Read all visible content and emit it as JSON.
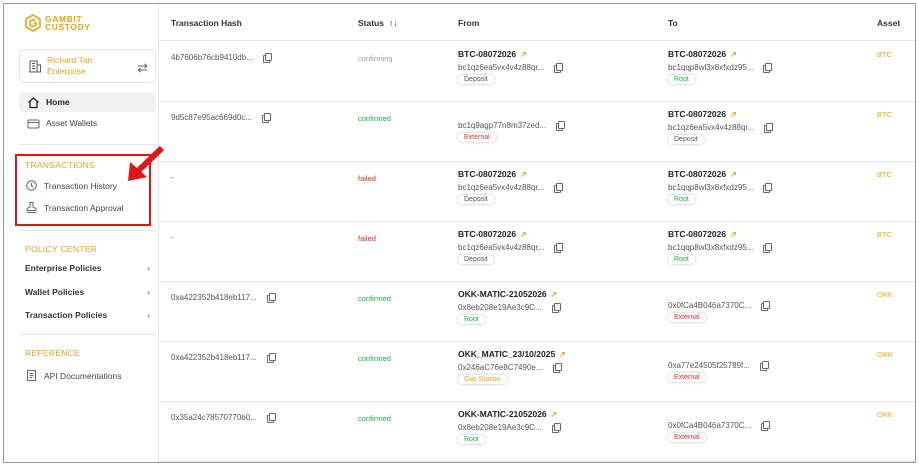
{
  "brand": {
    "line1": "GAMBIT",
    "line2": "CUSTODY"
  },
  "org": {
    "name": "Richard Tan Enterprise"
  },
  "nav": {
    "home": "Home",
    "asset_wallets": "Asset Wallets"
  },
  "transactions_section": {
    "title": "TRANSACTIONS",
    "history": "Transaction History",
    "approval": "Transaction Approval"
  },
  "policy_section": {
    "title": "POLICY CENTER",
    "items": [
      "Enterprise Policies",
      "Wallet Policies",
      "Transaction Policies"
    ]
  },
  "reference_section": {
    "title": "REFERENCE",
    "api_docs": "API Documentations"
  },
  "table": {
    "headers": {
      "hash": "Transaction Hash",
      "status": "Status",
      "from": "From",
      "to": "To",
      "asset": "Asset"
    },
    "rows": [
      {
        "hash": "4b7606b76cb9410db...",
        "status": "confirming",
        "from_name": "BTC-08072026",
        "from_addr": "bc1qz6ea5vx4v4z88qr...",
        "from_tag": "Deposit",
        "to_name": "BTC-08072026",
        "to_addr": "bc1qqp8wl3x8xfxdz95...",
        "to_tag": "Root",
        "asset": "BTC"
      },
      {
        "hash": "9d5c87e95ac669d0c...",
        "status": "confirmed",
        "from_name": "",
        "from_addr": "bc1q9agp77n8m37zed...",
        "from_tag": "External",
        "to_name": "BTC-08072026",
        "to_addr": "bc1qz6ea5vx4v4z88qr...",
        "to_tag": "Deposit",
        "asset": "BTC"
      },
      {
        "hash": "-",
        "status": "failed",
        "from_name": "BTC-08072026",
        "from_addr": "bc1qz6ea5vx4v4z88qr...",
        "from_tag": "Deposit",
        "to_name": "BTC-08072026",
        "to_addr": "bc1qqp8wl3x8xfxdz95...",
        "to_tag": "Root",
        "asset": "BTC"
      },
      {
        "hash": "-",
        "status": "failed",
        "from_name": "BTC-08072026",
        "from_addr": "bc1qz6ea5vx4v4z88qr...",
        "from_tag": "Deposit",
        "to_name": "BTC-08072026",
        "to_addr": "bc1qqp8wl3x8xfxdz95...",
        "to_tag": "Root",
        "asset": "BTC"
      },
      {
        "hash": "0xa422352b418eb117...",
        "status": "confirmed",
        "from_name": "OKK-MATIC-21052026",
        "from_addr": "0x8eb208e19Ae3c9C...",
        "from_tag": "Root",
        "to_name": "",
        "to_addr": "0x0fCa4B046a7370C...",
        "to_tag": "External",
        "asset": "OKK"
      },
      {
        "hash": "0xa422352b418eb117...",
        "status": "confirmed",
        "from_name": "OKK_MATIC_23/10/2025",
        "from_addr": "0x246aC76e8C7490e...",
        "from_tag": "Gas Station",
        "to_name": "",
        "to_addr": "0xa77e24505f25789f...",
        "to_tag": "External",
        "asset": "OKK"
      },
      {
        "hash": "0x35a24c78570770b0...",
        "status": "confirmed",
        "from_name": "OKK-MATIC-21052026",
        "from_addr": "0x8eb208e19Ae3c9C...",
        "from_tag": "Root",
        "to_name": "",
        "to_addr": "0x0fCa4B046a7370C...",
        "to_tag": "External",
        "asset": "OKK"
      }
    ]
  },
  "colors": {
    "accent": "#e8a21b",
    "confirmed": "#21a84a",
    "failed": "#d9302c",
    "highlight": "#e01515"
  }
}
